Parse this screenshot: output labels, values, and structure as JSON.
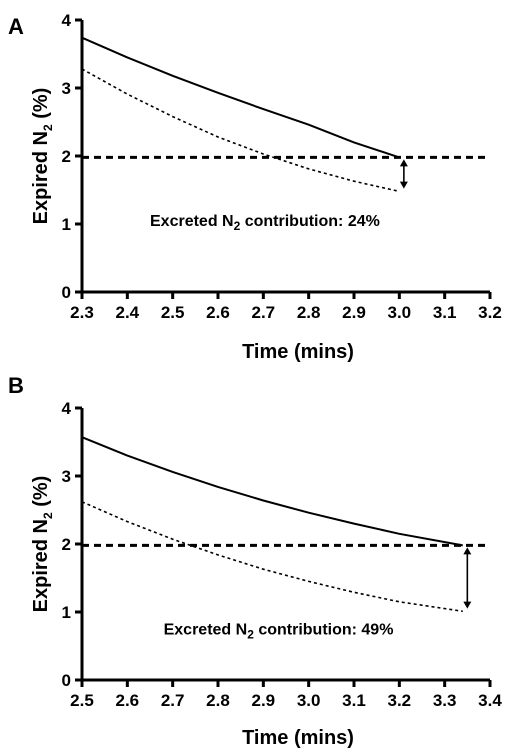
{
  "chart_data": [
    {
      "type": "line",
      "panel_label": "A",
      "xlabel": "Time (mins)",
      "ylabel": {
        "main": "Expired N",
        "sub": "2",
        "unit": " (%)"
      },
      "xlim": [
        2.3,
        3.2
      ],
      "ylim": [
        0,
        4
      ],
      "x_ticks": [
        "2.3",
        "2.4",
        "2.5",
        "2.6",
        "2.7",
        "2.8",
        "2.9",
        "3.0",
        "3.1",
        "3.2"
      ],
      "y_ticks": [
        "0",
        "1",
        "2",
        "3",
        "4"
      ],
      "series": [
        {
          "style": "solid",
          "x": [
            2.3,
            2.4,
            2.5,
            2.6,
            2.7,
            2.8,
            2.9,
            3.0
          ],
          "y": [
            3.74,
            3.45,
            3.18,
            2.93,
            2.69,
            2.46,
            2.2,
            1.98
          ]
        },
        {
          "style": "dotted",
          "x": [
            2.3,
            2.4,
            2.5,
            2.6,
            2.7,
            2.8,
            2.9,
            3.0
          ],
          "y": [
            3.28,
            2.91,
            2.58,
            2.28,
            2.03,
            1.81,
            1.63,
            1.48
          ]
        }
      ],
      "reference_line": {
        "y": 1.98,
        "style": "dashed"
      },
      "arrow": {
        "x": 3.01,
        "y_from": 1.98,
        "y_to": 1.49
      },
      "annotation": {
        "text_before": "Excreted N",
        "sub": "2",
        "text_after": " contribution: 24%",
        "x": 2.45,
        "y": 0.97
      }
    },
    {
      "type": "line",
      "panel_label": "B",
      "xlabel": "Time (mins)",
      "ylabel": {
        "main": "Expired N",
        "sub": "2",
        "unit": " (%)"
      },
      "xlim": [
        2.5,
        3.4
      ],
      "ylim": [
        0,
        4
      ],
      "x_ticks": [
        "2.5",
        "2.6",
        "2.7",
        "2.8",
        "2.9",
        "3.0",
        "3.1",
        "3.2",
        "3.3",
        "3.4"
      ],
      "y_ticks": [
        "0",
        "1",
        "2",
        "3",
        "4"
      ],
      "series": [
        {
          "style": "solid",
          "x": [
            2.5,
            2.6,
            2.7,
            2.8,
            2.9,
            3.0,
            3.1,
            3.2,
            3.34
          ],
          "y": [
            3.57,
            3.3,
            3.06,
            2.84,
            2.64,
            2.46,
            2.3,
            2.15,
            1.98
          ]
        },
        {
          "style": "dotted",
          "x": [
            2.5,
            2.6,
            2.7,
            2.8,
            2.9,
            3.0,
            3.1,
            3.2,
            3.34
          ],
          "y": [
            2.62,
            2.33,
            2.07,
            1.84,
            1.63,
            1.45,
            1.29,
            1.15,
            1.01
          ]
        }
      ],
      "reference_line": {
        "y": 1.98,
        "style": "dashed"
      },
      "arrow": {
        "x": 3.35,
        "y_from": 1.98,
        "y_to": 1.02
      },
      "annotation": {
        "text_before": "Excreted N",
        "sub": "2",
        "text_after": " contribution: 49%",
        "x": 2.68,
        "y": 0.67
      }
    }
  ]
}
